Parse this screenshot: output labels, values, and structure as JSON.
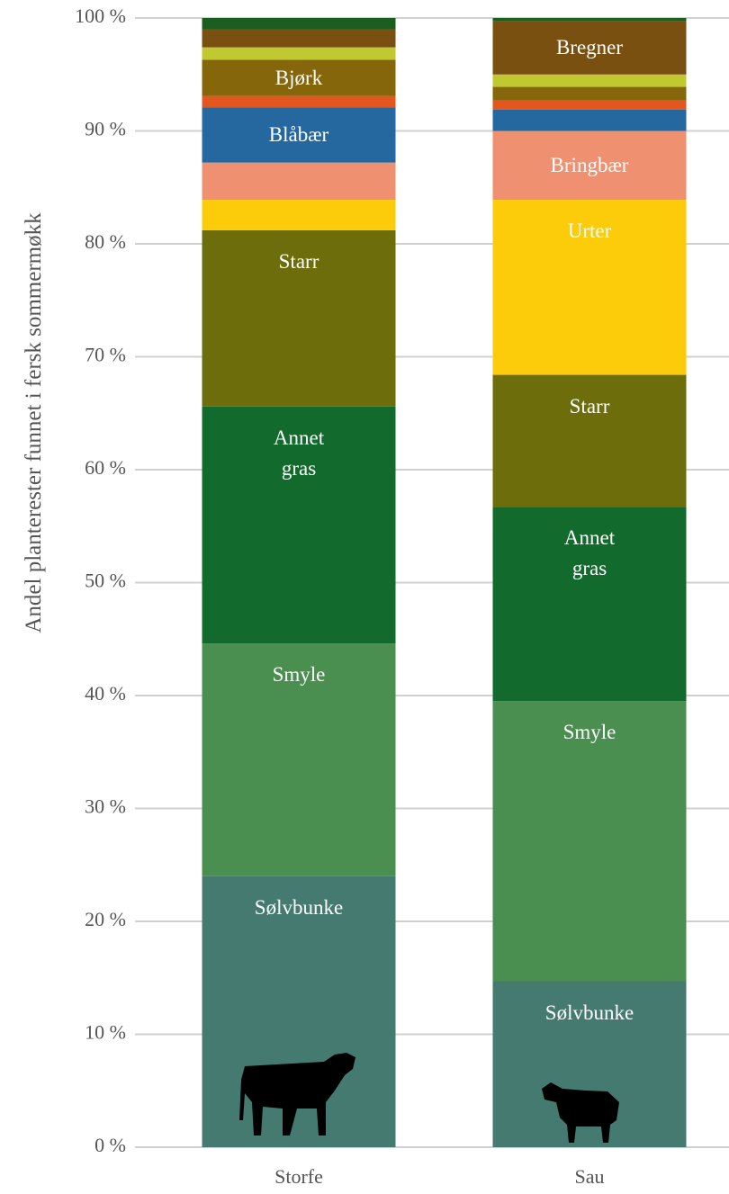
{
  "chart_data": {
    "type": "stacked_bar",
    "y_axis_label": "Andel planterester funnet i fersk sommermøkk",
    "categories": [
      "Storfe",
      "Sau"
    ],
    "ylim": [
      0,
      100
    ],
    "yticks": [
      {
        "value": 0,
        "label": "0 %"
      },
      {
        "value": 10,
        "label": "10 %"
      },
      {
        "value": 20,
        "label": "20 %"
      },
      {
        "value": 30,
        "label": "30 %"
      },
      {
        "value": 40,
        "label": "40 %"
      },
      {
        "value": 50,
        "label": "50 %"
      },
      {
        "value": 60,
        "label": "60 %"
      },
      {
        "value": 70,
        "label": "70 %"
      },
      {
        "value": 80,
        "label": "80 %"
      },
      {
        "value": 90,
        "label": "90 %"
      },
      {
        "value": 100,
        "label": "100 %"
      }
    ],
    "grid": true,
    "series": [
      {
        "name": "Sølvbunke",
        "color": "#447a70",
        "values": [
          24.0,
          14.7
        ],
        "show_label": [
          true,
          true
        ]
      },
      {
        "name": "Smyle",
        "color": "#4a8f50",
        "values": [
          20.6,
          24.8
        ],
        "show_label": [
          true,
          true
        ]
      },
      {
        "name": "Annet gras",
        "color": "#126b2c",
        "values": [
          21.0,
          17.2
        ],
        "show_label": [
          true,
          true
        ]
      },
      {
        "name": "Starr",
        "color": "#6d6d0c",
        "values": [
          15.6,
          11.7
        ],
        "show_label": [
          true,
          true
        ]
      },
      {
        "name": "Urter",
        "color": "#fccb0a",
        "values": [
          2.7,
          15.5
        ],
        "show_label": [
          false,
          true
        ]
      },
      {
        "name": "Bringbær",
        "color": "#ef9070",
        "values": [
          3.3,
          6.1
        ],
        "show_label": [
          false,
          true
        ]
      },
      {
        "name": "Blåbær",
        "color": "#2568a0",
        "values": [
          4.9,
          1.9
        ],
        "show_label": [
          true,
          false
        ]
      },
      {
        "color": "#e2561f",
        "values": [
          1.0,
          0.8
        ]
      },
      {
        "name": "Bjørk",
        "color": "#86660a",
        "values": [
          3.2,
          1.2
        ],
        "show_label": [
          true,
          false
        ]
      },
      {
        "color": "#c0ca30",
        "values": [
          1.1,
          1.1
        ]
      },
      {
        "name": "Bregner",
        "color": "#7a5010",
        "values": [
          1.6,
          4.7
        ],
        "show_label": [
          false,
          true
        ]
      },
      {
        "color": "#1b5e20",
        "values": [
          1.0,
          0.3
        ]
      }
    ]
  }
}
